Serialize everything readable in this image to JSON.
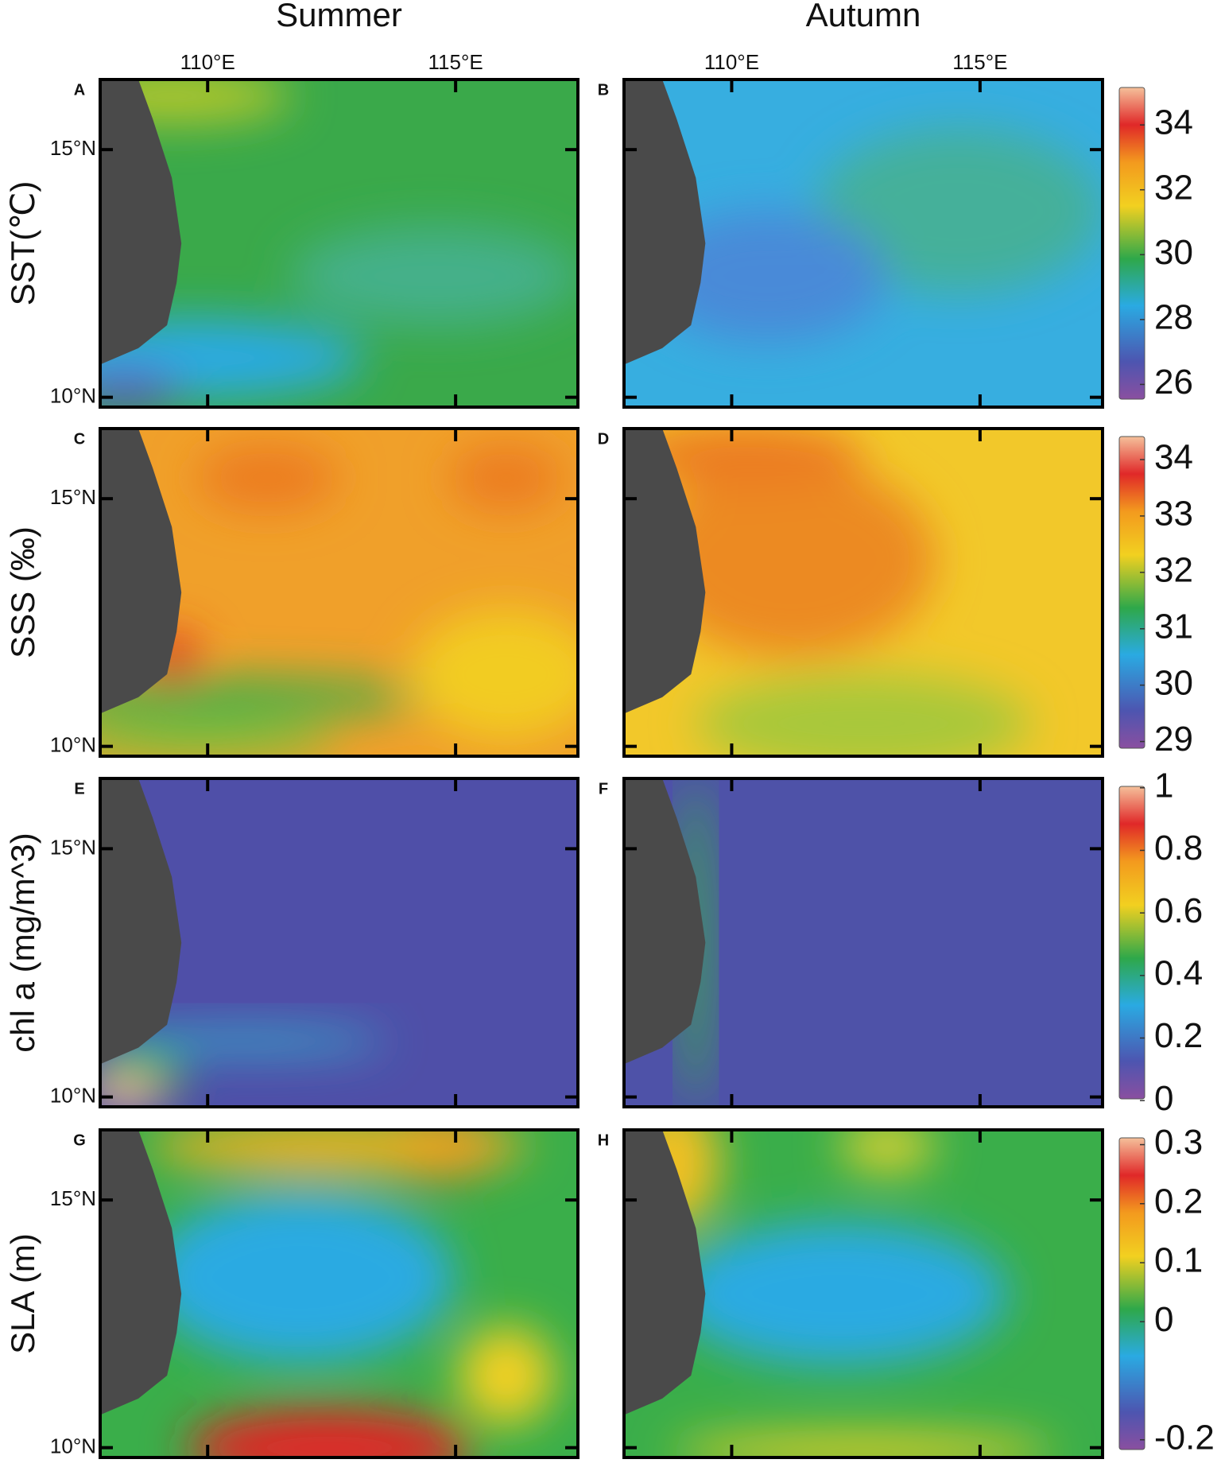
{
  "columns": [
    {
      "title": "Summer",
      "lon_labels": [
        "110°E",
        "115°E"
      ]
    },
    {
      "title": "Autumn",
      "lon_labels": [
        "110°E",
        "115°E"
      ]
    }
  ],
  "rows": [
    {
      "ylabel": "SST(℃)",
      "panels": [
        "A",
        "B"
      ],
      "lat_labels": [
        "15°N",
        "10°N"
      ],
      "colorbar": {
        "range": [
          25.3,
          35.4
        ],
        "ticks": [
          26,
          28,
          30,
          32,
          34
        ]
      }
    },
    {
      "ylabel": "SSS (‰)",
      "panels": [
        "C",
        "D"
      ],
      "lat_labels": [
        "15°N",
        "10°N"
      ],
      "colorbar": {
        "range": [
          28.74,
          34.55
        ],
        "ticks": [
          29,
          30,
          31,
          32,
          33,
          34
        ]
      }
    },
    {
      "ylabel": "chl a (mg/m^3)",
      "panels": [
        "E",
        "F"
      ],
      "lat_labels": [
        "15°N",
        "10°N"
      ],
      "colorbar": {
        "range": [
          -0.02,
          1.03
        ],
        "ticks": [
          0,
          0.2,
          0.4,
          0.6,
          0.8,
          1
        ]
      }
    },
    {
      "ylabel": "SLA (m)",
      "panels": [
        "G",
        "H"
      ],
      "lat_labels": [
        "15°N",
        "10°N"
      ],
      "colorbar": {
        "range": [
          -0.23,
          0.325
        ],
        "ticks": [
          -0.2,
          0,
          0.1,
          0.2,
          0.3
        ]
      }
    }
  ]
}
